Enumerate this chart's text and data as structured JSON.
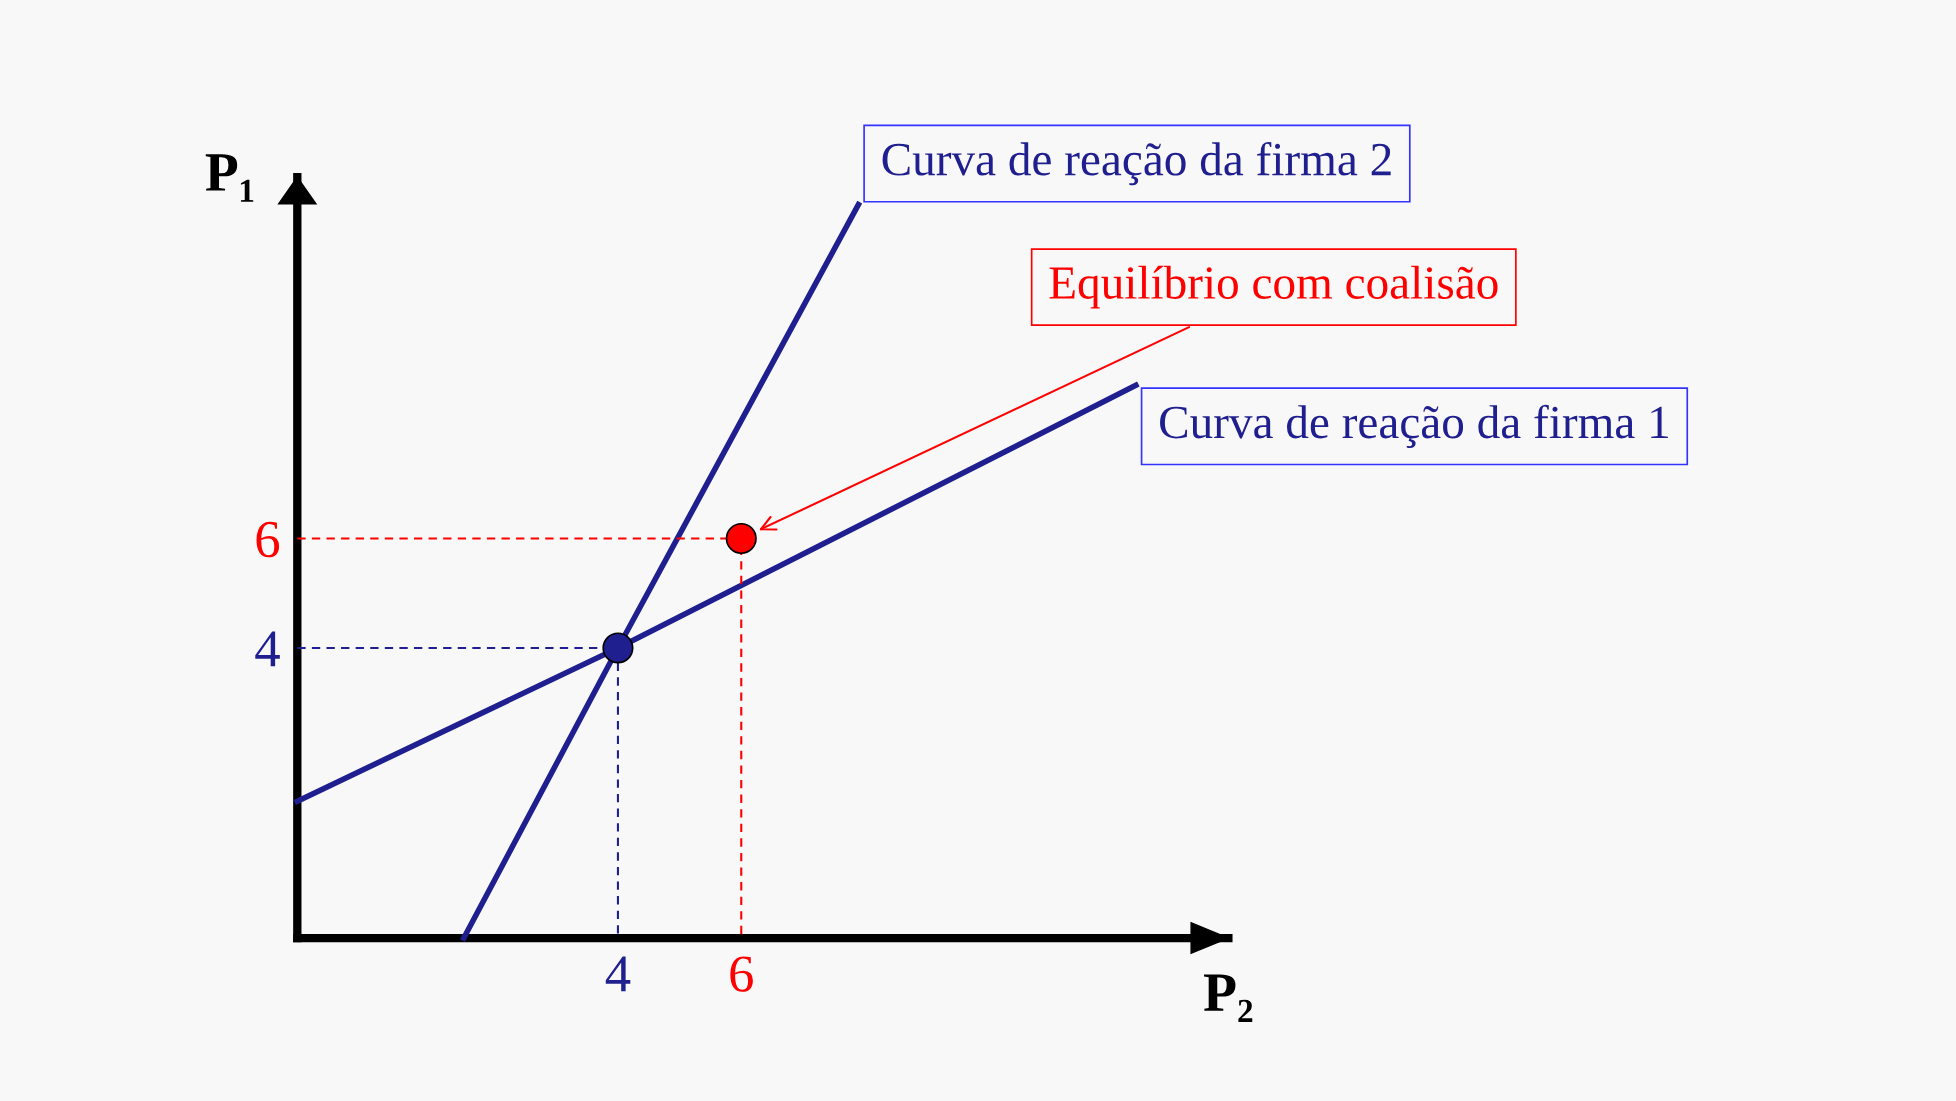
{
  "chart_data": {
    "type": "line",
    "xlabel": "P₂",
    "ylabel": "P₁",
    "xlim": [
      -1.2,
      13.9
    ],
    "ylim": [
      -1.3,
      12.6
    ],
    "xticks": [
      4,
      6
    ],
    "yticks": [
      4,
      6
    ],
    "grid": false,
    "marker": "none",
    "series": [
      {
        "name": "Curva de reação da firma 2",
        "color": "#1f1f8f",
        "x": [
          1.5,
          4,
          7.9
        ],
        "values": [
          -1.3,
          4,
          12.1
        ]
      },
      {
        "name": "Curva de reação da firma 1",
        "color": "#1f1f8f",
        "x": [
          -1.2,
          4,
          12.4
        ],
        "values": [
          1.2,
          4,
          8.8
        ]
      },
      {
        "type": "line",
        "line_style": "dashed",
        "color": "#1f1f8f",
        "x": [
          -1.2,
          4,
          4
        ],
        "values": [
          4,
          4,
          -1.3
        ]
      },
      {
        "type": "line",
        "line_style": "dashed",
        "color": "#ff0000",
        "x": [
          -1.2,
          6,
          6
        ],
        "values": [
          6,
          6,
          -1.3
        ]
      },
      {
        "type": "scatter",
        "marker": "circle",
        "color": "#1f1f8f",
        "x": [
          4
        ],
        "values": [
          4
        ]
      },
      {
        "type": "scatter",
        "marker": "circle",
        "name": "Equilíbrio com coalisão",
        "color": "#ff0000",
        "x": [
          6
        ],
        "values": [
          6
        ]
      }
    ]
  }
}
